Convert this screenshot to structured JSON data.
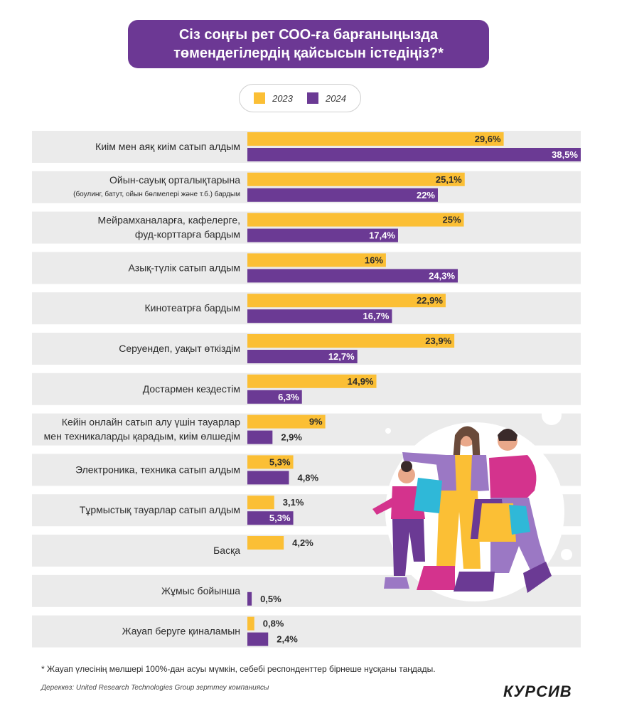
{
  "title": {
    "line1": "Сіз соңғы рет СОО-ға барғаныңызда",
    "line2": "төмендегілердің қайсысын істедіңіз?*"
  },
  "colors": {
    "y2023": "#fbbf35",
    "y2024": "#6b3a94",
    "row_bg": "#ebebeb"
  },
  "chart_data": {
    "type": "bar",
    "orientation": "horizontal",
    "xlim": [
      0,
      38.5
    ],
    "legend": [
      "2023",
      "2024"
    ],
    "legend_position": "top-center",
    "categories": [
      {
        "label": "Киім мен аяқ киім сатып алдым",
        "sublabel": ""
      },
      {
        "label": "Ойын-сауық орталықтарына",
        "sublabel": "(боулинг, батут, ойын бөлмелері және т.б.) бардым"
      },
      {
        "label": "Мейрамханаларға, кафелерге,",
        "sublabel": "фуд-корттарға бардым"
      },
      {
        "label": "Азық-түлік сатып алдым",
        "sublabel": ""
      },
      {
        "label": "Кинотеатрға бардым",
        "sublabel": ""
      },
      {
        "label": "Серуендеп, уақыт өткіздім",
        "sublabel": ""
      },
      {
        "label": "Достармен кездестім",
        "sublabel": ""
      },
      {
        "label": "Кейін онлайн сатып алу үшін тауарлар",
        "sublabel": "мен техникаларды қарадым, киім өлшедім"
      },
      {
        "label": "Электроника, техника сатып алдым",
        "sublabel": ""
      },
      {
        "label": "Тұрмыстық тауарлар сатып алдым",
        "sublabel": ""
      },
      {
        "label": "Басқа",
        "sublabel": ""
      },
      {
        "label": "Жұмыс бойынша",
        "sublabel": ""
      },
      {
        "label": "Жауап беруге қиналамын",
        "sublabel": ""
      }
    ],
    "series": [
      {
        "name": "2023",
        "values": [
          29.6,
          25.1,
          25,
          16,
          22.9,
          23.9,
          14.9,
          9,
          5.3,
          3.1,
          4.2,
          null,
          0.8
        ],
        "labels": [
          "29,6%",
          "25,1%",
          "25%",
          "16%",
          "22,9%",
          "23,9%",
          "14,9%",
          "9%",
          "5,3%",
          "3,1%",
          "4,2%",
          "",
          "0,8%"
        ]
      },
      {
        "name": "2024",
        "values": [
          38.5,
          22,
          17.4,
          24.3,
          16.7,
          12.7,
          6.3,
          2.9,
          4.8,
          5.3,
          null,
          0.5,
          2.4
        ],
        "labels": [
          "38,5%",
          "22%",
          "17,4%",
          "24,3%",
          "16,7%",
          "12,7%",
          "6,3%",
          "2,9%",
          "4,8%",
          "5,3%",
          "",
          "0,5%",
          "2,4%"
        ]
      }
    ]
  },
  "footnote": "* Жауап үлесінің мөлшері 100%-дан асуы мүмкін, себебі респонденттер бірнеше нұсқаны таңдады.",
  "source": "Дереккөз: United Research Technologies Group зерттеу компаниясы",
  "logo": "КУРСИВ"
}
